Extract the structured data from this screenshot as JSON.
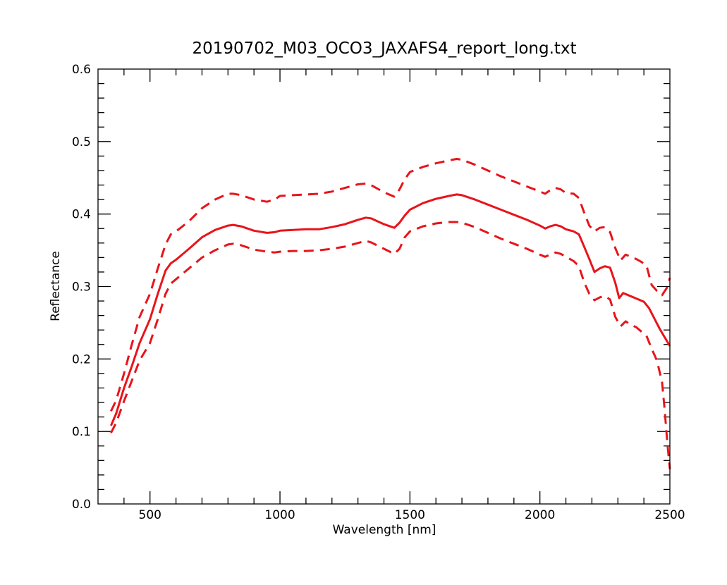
{
  "chart_data": {
    "type": "line",
    "title": "20190702_M03_OCO3_JAXAFS4_report_long.txt",
    "xlabel": "Wavelength [nm]",
    "ylabel": "Reflectance",
    "xlim": [
      300,
      2500
    ],
    "ylim": [
      0.0,
      0.6
    ],
    "x_ticks": [
      500,
      1000,
      1500,
      2000,
      2500
    ],
    "x_tick_labels": [
      "500",
      "1000",
      "1500",
      "2000",
      "2500"
    ],
    "y_ticks": [
      0.0,
      0.1,
      0.2,
      0.3,
      0.4,
      0.5,
      0.6
    ],
    "y_tick_labels": [
      "0.0",
      "0.1",
      "0.2",
      "0.3",
      "0.4",
      "0.5",
      "0.6"
    ],
    "grid": false,
    "legend": "none",
    "color": "#e8141a",
    "series": [
      {
        "style": "solid",
        "points": [
          [
            350,
            0.108
          ],
          [
            370,
            0.125
          ],
          [
            400,
            0.16
          ],
          [
            430,
            0.19
          ],
          [
            460,
            0.222
          ],
          [
            500,
            0.255
          ],
          [
            530,
            0.29
          ],
          [
            560,
            0.322
          ],
          [
            580,
            0.332
          ],
          [
            600,
            0.337
          ],
          [
            650,
            0.352
          ],
          [
            700,
            0.368
          ],
          [
            750,
            0.378
          ],
          [
            800,
            0.384
          ],
          [
            820,
            0.385
          ],
          [
            850,
            0.383
          ],
          [
            900,
            0.377
          ],
          [
            950,
            0.374
          ],
          [
            980,
            0.375
          ],
          [
            1000,
            0.377
          ],
          [
            1050,
            0.378
          ],
          [
            1100,
            0.379
          ],
          [
            1150,
            0.379
          ],
          [
            1200,
            0.382
          ],
          [
            1250,
            0.386
          ],
          [
            1300,
            0.392
          ],
          [
            1330,
            0.395
          ],
          [
            1350,
            0.394
          ],
          [
            1400,
            0.386
          ],
          [
            1440,
            0.381
          ],
          [
            1460,
            0.388
          ],
          [
            1480,
            0.398
          ],
          [
            1500,
            0.406
          ],
          [
            1550,
            0.415
          ],
          [
            1600,
            0.421
          ],
          [
            1650,
            0.425
          ],
          [
            1680,
            0.427
          ],
          [
            1700,
            0.426
          ],
          [
            1750,
            0.42
          ],
          [
            1800,
            0.413
          ],
          [
            1850,
            0.406
          ],
          [
            1900,
            0.399
          ],
          [
            1950,
            0.392
          ],
          [
            2000,
            0.384
          ],
          [
            2020,
            0.38
          ],
          [
            2040,
            0.383
          ],
          [
            2060,
            0.385
          ],
          [
            2080,
            0.383
          ],
          [
            2100,
            0.379
          ],
          [
            2130,
            0.376
          ],
          [
            2150,
            0.372
          ],
          [
            2170,
            0.355
          ],
          [
            2190,
            0.338
          ],
          [
            2210,
            0.32
          ],
          [
            2230,
            0.325
          ],
          [
            2250,
            0.328
          ],
          [
            2270,
            0.326
          ],
          [
            2290,
            0.305
          ],
          [
            2305,
            0.284
          ],
          [
            2320,
            0.291
          ],
          [
            2340,
            0.288
          ],
          [
            2360,
            0.285
          ],
          [
            2380,
            0.282
          ],
          [
            2400,
            0.279
          ],
          [
            2420,
            0.27
          ],
          [
            2440,
            0.256
          ],
          [
            2460,
            0.242
          ],
          [
            2480,
            0.23
          ],
          [
            2500,
            0.218
          ]
        ]
      },
      {
        "style": "dashed",
        "points": [
          [
            350,
            0.128
          ],
          [
            370,
            0.143
          ],
          [
            400,
            0.18
          ],
          [
            430,
            0.22
          ],
          [
            460,
            0.258
          ],
          [
            500,
            0.29
          ],
          [
            530,
            0.325
          ],
          [
            560,
            0.358
          ],
          [
            580,
            0.372
          ],
          [
            600,
            0.376
          ],
          [
            650,
            0.39
          ],
          [
            700,
            0.408
          ],
          [
            750,
            0.42
          ],
          [
            800,
            0.428
          ],
          [
            820,
            0.428
          ],
          [
            850,
            0.426
          ],
          [
            900,
            0.42
          ],
          [
            950,
            0.417
          ],
          [
            980,
            0.42
          ],
          [
            1000,
            0.425
          ],
          [
            1050,
            0.426
          ],
          [
            1100,
            0.427
          ],
          [
            1150,
            0.428
          ],
          [
            1200,
            0.431
          ],
          [
            1250,
            0.436
          ],
          [
            1300,
            0.441
          ],
          [
            1330,
            0.442
          ],
          [
            1350,
            0.44
          ],
          [
            1400,
            0.43
          ],
          [
            1440,
            0.424
          ],
          [
            1460,
            0.434
          ],
          [
            1480,
            0.448
          ],
          [
            1500,
            0.458
          ],
          [
            1550,
            0.465
          ],
          [
            1600,
            0.47
          ],
          [
            1650,
            0.474
          ],
          [
            1680,
            0.476
          ],
          [
            1700,
            0.475
          ],
          [
            1750,
            0.468
          ],
          [
            1800,
            0.46
          ],
          [
            1850,
            0.452
          ],
          [
            1900,
            0.445
          ],
          [
            1950,
            0.438
          ],
          [
            2000,
            0.431
          ],
          [
            2020,
            0.428
          ],
          [
            2040,
            0.433
          ],
          [
            2060,
            0.436
          ],
          [
            2080,
            0.434
          ],
          [
            2100,
            0.429
          ],
          [
            2130,
            0.428
          ],
          [
            2150,
            0.422
          ],
          [
            2170,
            0.402
          ],
          [
            2190,
            0.384
          ],
          [
            2210,
            0.376
          ],
          [
            2230,
            0.381
          ],
          [
            2250,
            0.382
          ],
          [
            2270,
            0.375
          ],
          [
            2290,
            0.353
          ],
          [
            2310,
            0.336
          ],
          [
            2330,
            0.344
          ],
          [
            2350,
            0.341
          ],
          [
            2370,
            0.338
          ],
          [
            2390,
            0.334
          ],
          [
            2410,
            0.329
          ],
          [
            2430,
            0.302
          ],
          [
            2450,
            0.294
          ],
          [
            2470,
            0.288
          ],
          [
            2490,
            0.299
          ],
          [
            2500,
            0.312
          ]
        ]
      },
      {
        "style": "dashed",
        "points": [
          [
            350,
            0.098
          ],
          [
            370,
            0.112
          ],
          [
            400,
            0.142
          ],
          [
            430,
            0.17
          ],
          [
            460,
            0.198
          ],
          [
            500,
            0.222
          ],
          [
            530,
            0.255
          ],
          [
            560,
            0.29
          ],
          [
            580,
            0.304
          ],
          [
            600,
            0.31
          ],
          [
            650,
            0.325
          ],
          [
            700,
            0.34
          ],
          [
            750,
            0.35
          ],
          [
            800,
            0.358
          ],
          [
            820,
            0.359
          ],
          [
            850,
            0.357
          ],
          [
            900,
            0.351
          ],
          [
            950,
            0.348
          ],
          [
            980,
            0.347
          ],
          [
            1000,
            0.348
          ],
          [
            1050,
            0.349
          ],
          [
            1100,
            0.349
          ],
          [
            1150,
            0.35
          ],
          [
            1200,
            0.352
          ],
          [
            1250,
            0.355
          ],
          [
            1300,
            0.36
          ],
          [
            1330,
            0.363
          ],
          [
            1350,
            0.361
          ],
          [
            1400,
            0.352
          ],
          [
            1440,
            0.345
          ],
          [
            1460,
            0.352
          ],
          [
            1480,
            0.368
          ],
          [
            1500,
            0.376
          ],
          [
            1550,
            0.383
          ],
          [
            1600,
            0.387
          ],
          [
            1650,
            0.389
          ],
          [
            1680,
            0.389
          ],
          [
            1700,
            0.388
          ],
          [
            1750,
            0.382
          ],
          [
            1800,
            0.374
          ],
          [
            1850,
            0.366
          ],
          [
            1900,
            0.359
          ],
          [
            1950,
            0.352
          ],
          [
            2000,
            0.344
          ],
          [
            2020,
            0.341
          ],
          [
            2040,
            0.344
          ],
          [
            2060,
            0.347
          ],
          [
            2080,
            0.345
          ],
          [
            2100,
            0.341
          ],
          [
            2130,
            0.335
          ],
          [
            2150,
            0.328
          ],
          [
            2170,
            0.306
          ],
          [
            2190,
            0.29
          ],
          [
            2210,
            0.281
          ],
          [
            2230,
            0.285
          ],
          [
            2250,
            0.287
          ],
          [
            2270,
            0.282
          ],
          [
            2290,
            0.258
          ],
          [
            2310,
            0.245
          ],
          [
            2330,
            0.252
          ],
          [
            2350,
            0.247
          ],
          [
            2370,
            0.244
          ],
          [
            2390,
            0.238
          ],
          [
            2410,
            0.232
          ],
          [
            2430,
            0.214
          ],
          [
            2450,
            0.198
          ],
          [
            2470,
            0.168
          ],
          [
            2480,
            0.13
          ],
          [
            2490,
            0.085
          ],
          [
            2500,
            0.048
          ]
        ]
      }
    ]
  }
}
